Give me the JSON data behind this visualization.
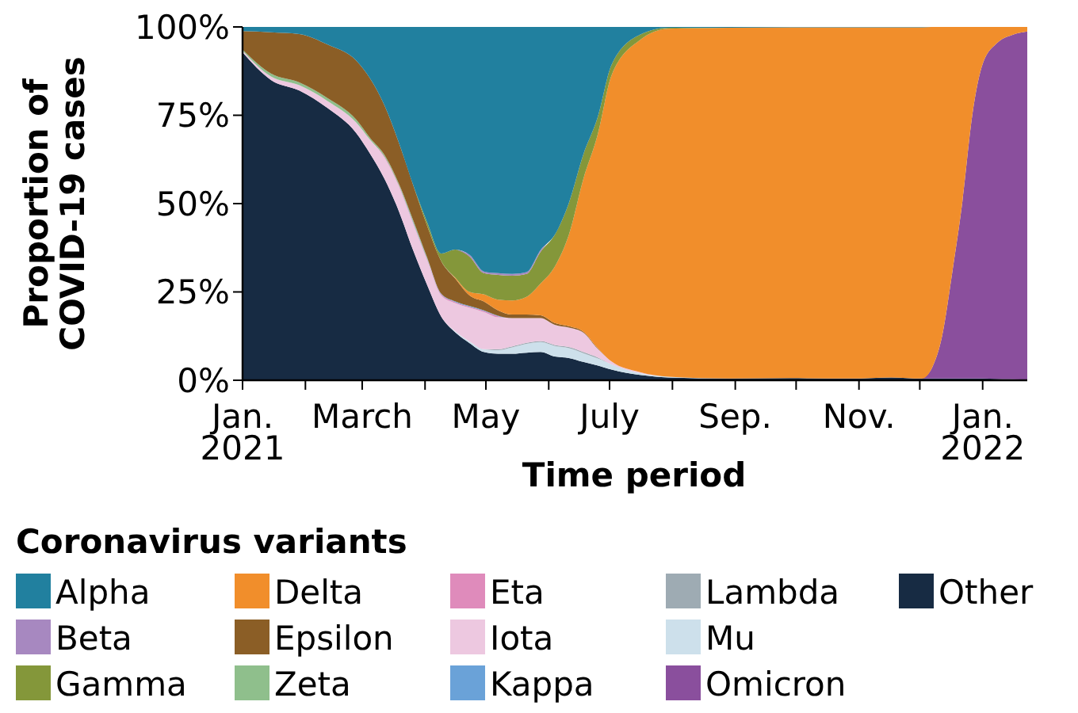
{
  "chart_data": {
    "type": "area",
    "stacked": true,
    "xlabel": "Time period",
    "ylabel": "Proportion of COVID-19 cases",
    "legend_title": "Coronavirus variants",
    "legend": "bottom",
    "grid": false,
    "x": [
      "2021-01-01",
      "2021-01-15",
      "2021-01-29",
      "2021-02-12",
      "2021-02-26",
      "2021-03-05",
      "2021-03-12",
      "2021-03-19",
      "2021-03-26",
      "2021-04-02",
      "2021-04-09",
      "2021-04-16",
      "2021-04-23",
      "2021-04-30",
      "2021-05-07",
      "2021-05-14",
      "2021-05-21",
      "2021-05-28",
      "2021-06-04",
      "2021-06-11",
      "2021-06-18",
      "2021-06-25",
      "2021-07-02",
      "2021-07-16",
      "2021-07-30",
      "2021-08-29",
      "2021-09-28",
      "2021-10-28",
      "2021-11-17",
      "2021-12-02",
      "2021-12-07",
      "2021-12-12",
      "2021-12-17",
      "2021-12-22",
      "2021-12-27",
      "2022-01-01",
      "2022-01-08",
      "2022-01-16",
      "2022-01-23"
    ],
    "xlim": [
      "2021-01-01",
      "2022-01-23"
    ],
    "xticks": [
      {
        "value": "2021-01-01",
        "label": "Jan. 2021"
      },
      {
        "value": "2021-02-01",
        "label": null
      },
      {
        "value": "2021-03-01",
        "label": "March"
      },
      {
        "value": "2021-04-01",
        "label": null
      },
      {
        "value": "2021-05-01",
        "label": "May"
      },
      {
        "value": "2021-06-01",
        "label": null
      },
      {
        "value": "2021-07-01",
        "label": "July"
      },
      {
        "value": "2021-08-01",
        "label": null
      },
      {
        "value": "2021-09-01",
        "label": "Sep."
      },
      {
        "value": "2021-10-01",
        "label": null
      },
      {
        "value": "2021-11-01",
        "label": "Nov."
      },
      {
        "value": "2021-12-01",
        "label": null
      },
      {
        "value": "2022-01-01",
        "label": "Jan. 2022"
      }
    ],
    "ylim": [
      0,
      100
    ],
    "yticks": [
      {
        "value": 0,
        "label": "0%"
      },
      {
        "value": 25,
        "label": "25%"
      },
      {
        "value": 50,
        "label": "50%"
      },
      {
        "value": 75,
        "label": "75%"
      },
      {
        "value": 100,
        "label": "100%"
      }
    ],
    "series": [
      {
        "name": "Other",
        "color": "#172b43",
        "values": [
          92.8,
          85,
          82,
          77,
          70,
          64,
          57,
          48,
          37,
          27,
          18,
          13.5,
          10.5,
          8,
          7.5,
          7.5,
          7.8,
          8,
          6.7,
          6.3,
          5.2,
          4.2,
          3,
          1.5,
          0.8,
          0.5,
          0.6,
          0.5,
          0.8,
          0.5,
          0.5,
          0.5,
          0.5,
          0.5,
          0.5,
          0.5,
          0.4,
          0.3,
          0.2
        ]
      },
      {
        "name": "Omicron",
        "color": "#8a4f9d",
        "values": [
          null,
          null,
          null,
          null,
          null,
          null,
          null,
          null,
          null,
          null,
          null,
          null,
          null,
          null,
          null,
          null,
          null,
          null,
          null,
          null,
          null,
          null,
          null,
          null,
          null,
          null,
          null,
          null,
          null,
          0,
          3,
          12,
          30,
          50,
          75,
          89,
          95,
          97.5,
          98.5
        ]
      },
      {
        "name": "Mu",
        "color": "#cde0eb",
        "values": [
          null,
          null,
          null,
          null,
          null,
          null,
          null,
          null,
          null,
          null,
          0,
          0.3,
          0.5,
          0.8,
          1,
          1.8,
          2.5,
          2.8,
          3,
          2.8,
          2.5,
          2,
          1.5,
          0.5,
          0.2,
          0,
          null,
          null,
          null,
          null,
          null,
          null,
          null,
          null,
          null,
          null,
          null,
          null,
          null
        ]
      },
      {
        "name": "Lambda",
        "color": "#9eabb3",
        "values": [
          null,
          null,
          null,
          null,
          null,
          null,
          null,
          null,
          null,
          null,
          null,
          null,
          null,
          0,
          0.3,
          0.3,
          0.3,
          0.3,
          0.3,
          0.3,
          0.3,
          0.3,
          0,
          null,
          null,
          null,
          null,
          null,
          null,
          null,
          null,
          null,
          null,
          null,
          null,
          null,
          null,
          null,
          null
        ]
      },
      {
        "name": "Iota",
        "color": "#edc8e0",
        "values": [
          0.5,
          1,
          1.5,
          2,
          3,
          4,
          6,
          7,
          7.5,
          7,
          6,
          8,
          9.5,
          10.5,
          9,
          8,
          7,
          6.5,
          5.7,
          5.5,
          5.5,
          2.5,
          0.8,
          0.3,
          0,
          null,
          null,
          null,
          null,
          null,
          null,
          null,
          null,
          null,
          null,
          null,
          null,
          null,
          null
        ]
      },
      {
        "name": "Eta",
        "color": "#df8bbb",
        "values": [
          null,
          null,
          null,
          null,
          null,
          0,
          0.3,
          0.3,
          0.3,
          0.3,
          0.3,
          0.3,
          0.3,
          0.3,
          0.3,
          0,
          null,
          null,
          null,
          null,
          null,
          null,
          null,
          null,
          null,
          null,
          null,
          null,
          null,
          null,
          null,
          null,
          null,
          null,
          null,
          null,
          null,
          null,
          null
        ]
      },
      {
        "name": "Kappa",
        "color": "#6aa2d8",
        "values": [
          null,
          null,
          null,
          null,
          null,
          null,
          null,
          0,
          0.2,
          0.2,
          0.2,
          0.2,
          0.2,
          0.2,
          0.2,
          0,
          null,
          null,
          null,
          null,
          null,
          null,
          null,
          null,
          null,
          null,
          null,
          null,
          null,
          null,
          null,
          null,
          null,
          null,
          null,
          null,
          null,
          null,
          null
        ]
      },
      {
        "name": "Zeta",
        "color": "#8fbf8c",
        "values": [
          0.3,
          0.8,
          0.8,
          0.8,
          0.8,
          0.5,
          0.5,
          0.5,
          0.5,
          0.3,
          0,
          null,
          null,
          null,
          null,
          null,
          null,
          null,
          null,
          null,
          null,
          null,
          null,
          null,
          null,
          null,
          null,
          null,
          null,
          null,
          null,
          null,
          null,
          null,
          null,
          null,
          null,
          null,
          null
        ]
      },
      {
        "name": "Epsilon",
        "color": "#8b5e26",
        "values": [
          5.2,
          11.7,
          13.7,
          15.2,
          16.7,
          16.8,
          14,
          11.6,
          10,
          9,
          9.2,
          6.4,
          3,
          2.5,
          1.5,
          1,
          1,
          0.8,
          0.5,
          0.4,
          0.3,
          0.2,
          0,
          null,
          null,
          null,
          null,
          null,
          null,
          null,
          null,
          null,
          null,
          null,
          null,
          null,
          null,
          null,
          null
        ]
      },
      {
        "name": "Delta",
        "color": "#f18e2b",
        "values": [
          null,
          null,
          null,
          null,
          null,
          null,
          null,
          null,
          null,
          null,
          0,
          0.3,
          1,
          2,
          3,
          4,
          5,
          9,
          16,
          26,
          43,
          60,
          81,
          94,
          98.5,
          99.3,
          99.3,
          99.4,
          99.1,
          99.4,
          96.5,
          87.5,
          69.5,
          49.5,
          24.5,
          10.5,
          4.6,
          2.2,
          1.3
        ]
      },
      {
        "name": "Gamma",
        "color": "#84973a",
        "values": [
          null,
          null,
          null,
          null,
          null,
          null,
          null,
          null,
          0,
          1,
          2.2,
          8,
          10,
          6,
          7,
          7,
          6.5,
          9,
          9,
          9,
          7,
          5,
          3,
          1.5,
          0.3,
          0,
          null,
          null,
          null,
          null,
          null,
          null,
          null,
          null,
          null,
          null,
          null,
          null,
          null
        ]
      },
      {
        "name": "Beta",
        "color": "#a788c0",
        "values": [
          null,
          null,
          null,
          null,
          null,
          null,
          null,
          null,
          null,
          null,
          null,
          0,
          0.5,
          0.5,
          0.5,
          0.5,
          0.5,
          0.5,
          0,
          null,
          null,
          null,
          null,
          null,
          null,
          null,
          null,
          null,
          null,
          null,
          null,
          null,
          null,
          null,
          null,
          null,
          null,
          null,
          null
        ]
      },
      {
        "name": "Alpha",
        "color": "#21809f",
        "values": [
          1.2,
          1.5,
          2,
          5,
          9.5,
          14.7,
          22.2,
          32.6,
          44.5,
          55.2,
          64.1,
          63,
          64.5,
          69.2,
          69.7,
          69.9,
          69.4,
          63.1,
          58.8,
          49.7,
          36.2,
          25.8,
          10.7,
          2.2,
          0.2,
          0.2,
          0.1,
          0.1,
          0.1,
          0.1,
          0,
          null,
          null,
          null,
          null,
          null,
          null,
          null,
          null
        ]
      }
    ]
  }
}
